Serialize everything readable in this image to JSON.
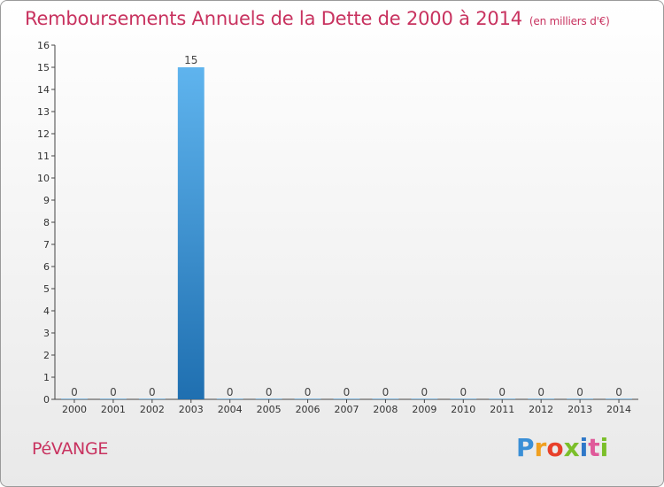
{
  "header": {
    "title": "Remboursements Annuels de la Dette de 2000 à 2014",
    "subtitle": "(en milliers d'€)"
  },
  "footer": {
    "commune": "PéVANGE",
    "logo": [
      "P",
      "r",
      "o",
      "x",
      "i",
      "t",
      "i"
    ]
  },
  "colors": {
    "title": "#c8325f",
    "bar_top": "#5fb4ee",
    "bar_bottom": "#1f6fb0",
    "axis": "#444444"
  },
  "chart_data": {
    "type": "bar",
    "categories": [
      "2000",
      "2001",
      "2002",
      "2003",
      "2004",
      "2005",
      "2006",
      "2007",
      "2008",
      "2009",
      "2010",
      "2011",
      "2012",
      "2013",
      "2014"
    ],
    "values": [
      0,
      0,
      0,
      15,
      0,
      0,
      0,
      0,
      0,
      0,
      0,
      0,
      0,
      0,
      0
    ],
    "data_labels": [
      "0",
      "0",
      "0",
      "15",
      "0",
      "0",
      "0",
      "0",
      "0",
      "0",
      "0",
      "0",
      "0",
      "0",
      "0"
    ],
    "yticks": [
      "0",
      "1",
      "2",
      "3",
      "4",
      "5",
      "6",
      "7",
      "8",
      "9",
      "10",
      "11",
      "12",
      "13",
      "14",
      "15",
      "16"
    ],
    "ylim": [
      0,
      16
    ],
    "grid": false,
    "legend": "none"
  }
}
